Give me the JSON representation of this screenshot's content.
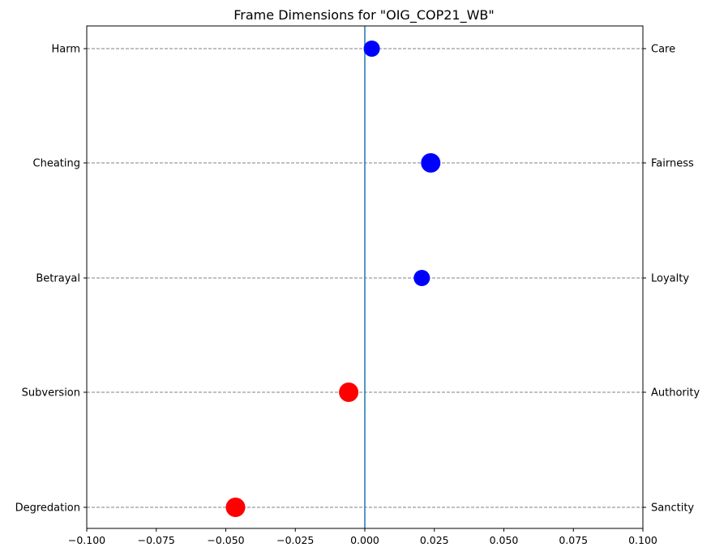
{
  "chart_data": {
    "type": "scatter",
    "title": "Frame Dimensions for \"OIG_COP21_WB\"",
    "xlabel": "",
    "ylabel": "",
    "xlim": [
      -0.1,
      0.1
    ],
    "x_ticks": [
      -0.1,
      -0.075,
      -0.05,
      -0.025,
      0.0,
      0.025,
      0.05,
      0.075,
      0.1
    ],
    "x_tick_labels": [
      "−0.100",
      "−0.075",
      "−0.050",
      "−0.025",
      "0.000",
      "0.025",
      "0.050",
      "0.075",
      "0.100"
    ],
    "left_labels": [
      "Harm",
      "Cheating",
      "Betrayal",
      "Subversion",
      "Degredation"
    ],
    "right_labels": [
      "Care",
      "Fairness",
      "Loyalty",
      "Authority",
      "Sanctity"
    ],
    "points": [
      {
        "y_index": 0,
        "x": 0.0025,
        "color": "#0000ff",
        "magnitude": "small"
      },
      {
        "y_index": 1,
        "x": 0.0237,
        "color": "#0000ff",
        "magnitude": "large"
      },
      {
        "y_index": 2,
        "x": 0.0205,
        "color": "#0000ff",
        "magnitude": "small"
      },
      {
        "y_index": 3,
        "x": -0.0058,
        "color": "#ff0000",
        "magnitude": "large"
      },
      {
        "y_index": 4,
        "x": -0.0465,
        "color": "#ff0000",
        "magnitude": "large"
      }
    ],
    "zero_line_color": "#1f77b4",
    "gridline_style": "dashed-gray",
    "grid": "horizontal"
  }
}
